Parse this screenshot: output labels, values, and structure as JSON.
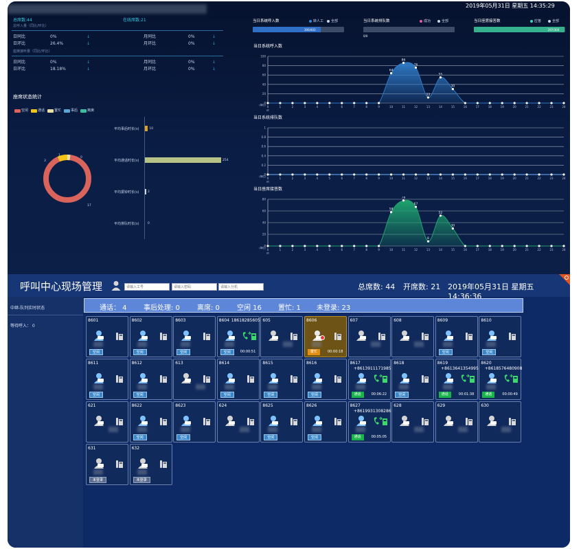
{
  "top_header": {
    "datetime": "2019年05月31日 星期五 14:35:29"
  },
  "summary": {
    "total_seats_label": "总席数:44",
    "online_seats_label": "在线席数:21",
    "section1_title": "总呼入量（同比/环比）",
    "section2_title": "座席接听量（同比/环比）",
    "rows1": [
      {
        "l1": "日同比",
        "v1": "0%",
        "l2": "月同比",
        "v2": "0%"
      },
      {
        "l1": "日环比",
        "v1": "26.4%",
        "l2": "月环比",
        "v2": "0%"
      }
    ],
    "rows2": [
      {
        "l1": "日同比",
        "v1": "0%",
        "l2": "月同比",
        "v2": "0%"
      },
      {
        "l1": "日环比",
        "v1": "18.18%",
        "l2": "月环比",
        "v2": "0%"
      }
    ],
    "arrow": "↓"
  },
  "seat_status": {
    "title": "座席状态统计",
    "legend": [
      {
        "label": "空闲",
        "color": "#e0625b"
      },
      {
        "label": "通话",
        "color": "#f0c418"
      },
      {
        "label": "置忙",
        "color": "#e8dfa7"
      },
      {
        "label": "事后",
        "color": "#5aa4d6"
      },
      {
        "label": "离席",
        "color": "#3dbca0"
      }
    ],
    "donut_labels": {
      "a": "1",
      "b": "0",
      "c": "3",
      "d": "17"
    },
    "bars": [
      {
        "label": "平均事后时长(s)",
        "value": 10,
        "color": "#e0a020"
      },
      {
        "label": "平均通话时长(s)",
        "value": 254,
        "color": "#b9c286"
      },
      {
        "label": "平均振铃时长(s)",
        "value": 2,
        "color": "#d8d8d8"
      },
      {
        "label": "平均排队时长(s)",
        "value": 0,
        "color": "#d8d8d8"
      }
    ]
  },
  "kpis": [
    {
      "title": "当日系统呼入数",
      "leg1": "转人工",
      "leg2": "全部",
      "value_label": "300/403",
      "progress": 0.744,
      "color": "#2f6fc7",
      "leg1_color": "#2f8ad6"
    },
    {
      "title": "当日系统排队数",
      "leg1": "成功",
      "leg2": "全部",
      "value_label": "0/0",
      "progress": 0,
      "color": "#2f6fc7",
      "leg1_color": "#e55fa2"
    },
    {
      "title": "当日座席接答数",
      "leg1": "应答",
      "leg2": "全部",
      "value_label": "297/300",
      "progress": 0.99,
      "color": "#35b28d",
      "leg1_color": "#3dd4b2"
    }
  ],
  "charts": {
    "title1": "当日系统呼入数",
    "title2": "当日系统排队数",
    "title3": "当日座席接答数",
    "unit": "(单位)",
    "xunit": "时"
  },
  "chart_data": [
    {
      "type": "area",
      "title": "当日系统呼入数",
      "x": [
        0,
        1,
        2,
        3,
        4,
        5,
        6,
        7,
        8,
        9,
        10,
        11,
        12,
        13,
        14,
        15,
        16,
        17,
        18,
        19,
        20,
        21,
        22,
        23,
        24
      ],
      "values": [
        0,
        0,
        0,
        0,
        0,
        0,
        0,
        0,
        0,
        0,
        64,
        86,
        76,
        12,
        55,
        30,
        0,
        0,
        0,
        0,
        0,
        0,
        0,
        0,
        0
      ],
      "ylim": [
        0,
        100
      ],
      "yticks": [
        0,
        20,
        40,
        60,
        80,
        100
      ],
      "color": "#2f79c6"
    },
    {
      "type": "line",
      "title": "当日系统排队数",
      "x": [
        0,
        1,
        2,
        3,
        4,
        5,
        6,
        7,
        8,
        9,
        10,
        11,
        12,
        13,
        14,
        15,
        16,
        17,
        18,
        19,
        20,
        21,
        22,
        23,
        24
      ],
      "values": [
        0,
        0,
        0,
        0,
        0,
        0,
        0,
        0,
        0,
        0,
        0,
        0,
        0,
        0,
        0,
        0,
        0,
        0,
        0,
        0,
        0,
        0,
        0,
        0,
        0
      ],
      "ylim": [
        0,
        1
      ],
      "yticks": [
        0,
        0.2,
        0.4,
        0.6,
        0.8,
        1
      ],
      "color": "#2f79c6"
    },
    {
      "type": "area",
      "title": "当日座席接答数",
      "x": [
        0,
        1,
        2,
        3,
        4,
        5,
        6,
        7,
        8,
        9,
        10,
        11,
        12,
        13,
        14,
        15,
        16,
        17,
        18,
        19,
        20,
        21,
        22,
        23,
        24
      ],
      "values": [
        0,
        0,
        0,
        0,
        0,
        0,
        0,
        0,
        0,
        0,
        58,
        78,
        67,
        8,
        52,
        30,
        0,
        0,
        0,
        0,
        0,
        0,
        0,
        0,
        0
      ],
      "ylim": [
        0,
        80
      ],
      "yticks": [
        0,
        20,
        40,
        60,
        80
      ],
      "color": "#1ea36e"
    }
  ],
  "bottom": {
    "title": "呼叫中心现场管理",
    "placeholders": {
      "agent": "请输入工号",
      "password": "请输入密码",
      "ext": "请输入分机"
    },
    "total_seats": "总席数:  44",
    "open_seats": "开席数:  21",
    "datetime": "2019年05月31日 星期五 14:36:36",
    "side_title": "中继-队列实时状态",
    "side_wait": "等待呼入：   0",
    "status": {
      "call": "通话：  4",
      "after": "事后处理: 0",
      "away": "离席: 0",
      "idle": "空闲 16",
      "busy": "置忙: 1",
      "notlogged": "未登录: 23"
    },
    "cards": [
      {
        "num": "8601",
        "phone": "",
        "badge": "空闲",
        "state": "idle",
        "time": ""
      },
      {
        "num": "8602",
        "phone": "",
        "badge": "空闲",
        "state": "idle",
        "time": ""
      },
      {
        "num": "8603",
        "phone": "",
        "badge": "空闲",
        "state": "idle",
        "time": ""
      },
      {
        "num": "8604",
        "phone": "18618285605",
        "badge": "空闲",
        "state": "idle",
        "time": "00:00:51"
      },
      {
        "num": "605",
        "phone": "",
        "badge": "",
        "state": "none",
        "time": ""
      },
      {
        "num": "8606",
        "phone": "",
        "badge": "置忙",
        "state": "busy",
        "time": "00:00:18"
      },
      {
        "num": "607",
        "phone": "",
        "badge": "",
        "state": "none",
        "time": ""
      },
      {
        "num": "608",
        "phone": "",
        "badge": "",
        "state": "none",
        "time": ""
      },
      {
        "num": "8609",
        "phone": "",
        "badge": "空闲",
        "state": "idle",
        "time": ""
      },
      {
        "num": "8610",
        "phone": "",
        "badge": "空闲",
        "state": "idle",
        "time": ""
      },
      {
        "num": "8611",
        "phone": "",
        "badge": "空闲",
        "state": "idle",
        "time": ""
      },
      {
        "num": "8612",
        "phone": "",
        "badge": "空闲",
        "state": "idle",
        "time": ""
      },
      {
        "num": "613",
        "phone": "",
        "badge": "",
        "state": "none",
        "time": ""
      },
      {
        "num": "8614",
        "phone": "",
        "badge": "空闲",
        "state": "idle",
        "time": ""
      },
      {
        "num": "8615",
        "phone": "",
        "badge": "空闲",
        "state": "idle",
        "time": ""
      },
      {
        "num": "8616",
        "phone": "",
        "badge": "空闲",
        "state": "idle",
        "time": ""
      },
      {
        "num": "8617",
        "phone": "+8613911171985",
        "badge": "通话",
        "state": "call",
        "time": "00:06:22"
      },
      {
        "num": "8618",
        "phone": "",
        "badge": "空闲",
        "state": "idle",
        "time": ""
      },
      {
        "num": "8619",
        "phone": "+8613641354995",
        "badge": "通话",
        "state": "call",
        "time": "00:01:38"
      },
      {
        "num": "8620",
        "phone": "+8618576480908",
        "badge": "通话",
        "state": "call",
        "time": "00:00:49"
      },
      {
        "num": "621",
        "phone": "",
        "badge": "",
        "state": "none",
        "time": ""
      },
      {
        "num": "8622",
        "phone": "",
        "badge": "空闲",
        "state": "idle",
        "time": ""
      },
      {
        "num": "8623",
        "phone": "",
        "badge": "空闲",
        "state": "idle",
        "time": ""
      },
      {
        "num": "624",
        "phone": "",
        "badge": "",
        "state": "none",
        "time": ""
      },
      {
        "num": "8625",
        "phone": "",
        "badge": "空闲",
        "state": "idle",
        "time": ""
      },
      {
        "num": "8626",
        "phone": "",
        "badge": "空闲",
        "state": "idle",
        "time": ""
      },
      {
        "num": "8627",
        "phone": "+8619931308286",
        "badge": "通话",
        "state": "call",
        "time": "00:05:05"
      },
      {
        "num": "628",
        "phone": "",
        "badge": "",
        "state": "none",
        "time": ""
      },
      {
        "num": "629",
        "phone": "",
        "badge": "",
        "state": "none",
        "time": ""
      },
      {
        "num": "630",
        "phone": "",
        "badge": "",
        "state": "none",
        "time": ""
      },
      {
        "num": "631",
        "phone": "",
        "badge": "未登录",
        "state": "off",
        "time": ""
      },
      {
        "num": "632",
        "phone": "",
        "badge": "未登录",
        "state": "off",
        "time": ""
      }
    ]
  }
}
